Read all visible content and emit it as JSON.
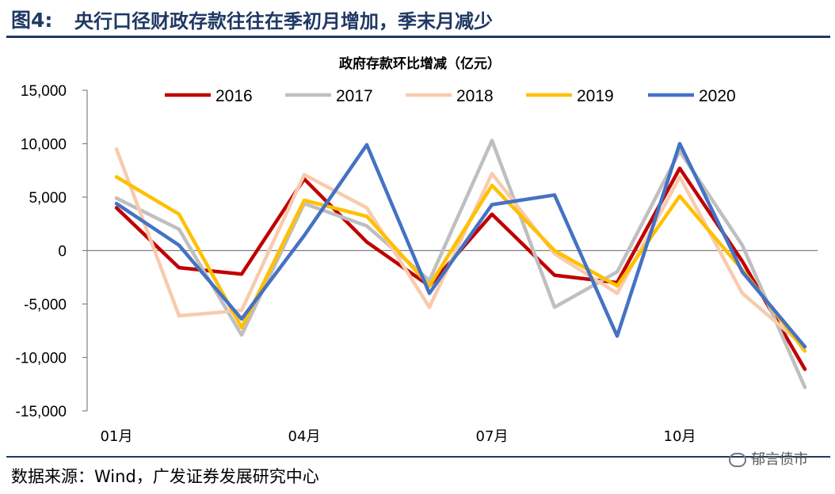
{
  "header": {
    "figure_label": "图4:",
    "figure_title": "央行口径财政存款往往在季初月增加，季末月减少"
  },
  "footer": {
    "source": "数据来源：Wind，广发证券发展研究中心",
    "watermark": "郁言债市",
    "watermark_icon": "wechat-icon"
  },
  "chart_data": {
    "type": "line",
    "title": "政府存款环比增减（亿元）",
    "categories": [
      "01月",
      "02月",
      "03月",
      "04月",
      "05月",
      "06月",
      "07月",
      "08月",
      "09月",
      "10月",
      "11月",
      "12月"
    ],
    "x_tick_labels": [
      "01月",
      "04月",
      "07月",
      "10月"
    ],
    "y_ticks": [
      15000,
      10000,
      5000,
      0,
      -5000,
      -10000,
      -15000
    ],
    "y_tick_labels": [
      "15,000",
      "10,000",
      "5,000",
      "0",
      "-5,000",
      "-10,000",
      "-15,000"
    ],
    "ylim": [
      -15000,
      15000
    ],
    "grid": false,
    "legend_position": "top",
    "series": [
      {
        "name": "2016",
        "color": "#c00000",
        "values": [
          4000,
          -1600,
          -2200,
          6700,
          800,
          -3300,
          3400,
          -2300,
          -3000,
          7700,
          -1000,
          -11100
        ]
      },
      {
        "name": "2017",
        "color": "#bfbfbf",
        "values": [
          4900,
          2000,
          -7900,
          4400,
          2300,
          -2800,
          10300,
          -5300,
          -2000,
          9300,
          500,
          -12800
        ]
      },
      {
        "name": "2018",
        "color": "#f8cbad",
        "values": [
          9500,
          -6100,
          -5600,
          7100,
          4000,
          -5300,
          7200,
          -300,
          -4000,
          6900,
          -4000,
          -9000
        ]
      },
      {
        "name": "2019",
        "color": "#ffc000",
        "values": [
          6900,
          3400,
          -7200,
          4700,
          3200,
          -3300,
          6100,
          0,
          -3300,
          5100,
          -1800,
          -9400
        ]
      },
      {
        "name": "2020",
        "color": "#4472c4",
        "values": [
          4400,
          500,
          -6400,
          1400,
          9900,
          -4000,
          4300,
          5200,
          -8000,
          10000,
          -2000,
          -9000
        ]
      }
    ]
  }
}
